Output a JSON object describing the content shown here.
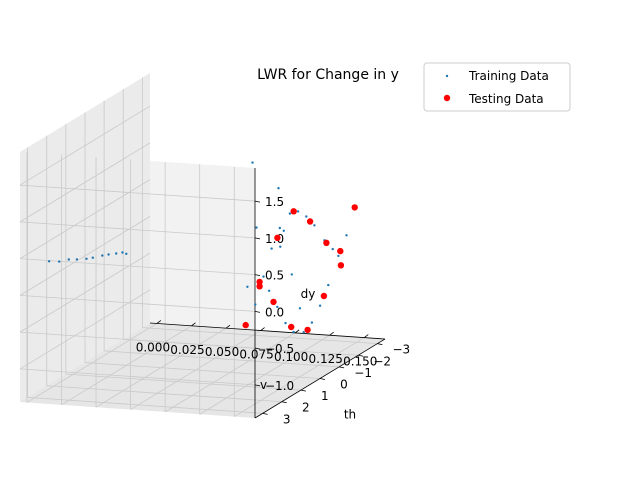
{
  "chart_data": {
    "type": "scatter",
    "projection": "3d",
    "title": "LWR for Change in y",
    "xlabel": "v",
    "ylabel": "th",
    "zlabel": "dy",
    "xlim": [
      -0.005,
      0.165
    ],
    "ylim": [
      -3.4,
      3.4
    ],
    "zlim": [
      -1.45,
      1.95
    ],
    "xticks": [
      "0.000",
      "0.025",
      "0.050",
      "0.075",
      "0.100",
      "0.125",
      "0.150"
    ],
    "yticks": [
      "−3",
      "−2",
      "−1",
      "0",
      "1",
      "2",
      "3"
    ],
    "zticks": [
      "−1.0",
      "−0.5",
      "0.0",
      "0.5",
      "1.0",
      "1.5"
    ],
    "grid": true,
    "legend": "top-right",
    "series": [
      {
        "name": "Training Data",
        "color": "#1f77b4",
        "marker": "small-dot",
        "points": [
          {
            "x": 0.0,
            "y": -1.8,
            "z": -0.25
          },
          {
            "x": 0.0,
            "y": -1.6,
            "z": -0.2
          },
          {
            "x": 0.001,
            "y": -1.2,
            "z": -0.15
          },
          {
            "x": 0.001,
            "y": -0.8,
            "z": -0.1
          },
          {
            "x": 0.002,
            "y": -0.4,
            "z": -0.05
          },
          {
            "x": 0.002,
            "y": 0.1,
            "z": 0.0
          },
          {
            "x": 0.003,
            "y": 0.5,
            "z": 0.05
          },
          {
            "x": 0.003,
            "y": 1.0,
            "z": 0.12
          },
          {
            "x": 0.004,
            "y": 1.5,
            "z": 0.2
          },
          {
            "x": 0.004,
            "y": 2.0,
            "z": 0.25
          },
          {
            "x": 0.005,
            "y": 2.6,
            "z": 0.35
          },
          {
            "x": 0.14,
            "y": -2.9,
            "z": -0.4
          },
          {
            "x": 0.141,
            "y": -2.4,
            "z": -0.1
          },
          {
            "x": 0.142,
            "y": -1.9,
            "z": 0.1
          },
          {
            "x": 0.143,
            "y": -1.3,
            "z": 0.4
          },
          {
            "x": 0.144,
            "y": -0.8,
            "z": 0.6
          },
          {
            "x": 0.145,
            "y": -0.3,
            "z": 0.75
          },
          {
            "x": 0.146,
            "y": 0.2,
            "z": 0.8
          },
          {
            "x": 0.147,
            "y": 0.8,
            "z": 0.7
          },
          {
            "x": 0.148,
            "y": 1.3,
            "z": 0.5
          },
          {
            "x": 0.149,
            "y": 1.8,
            "z": 0.2
          },
          {
            "x": 0.15,
            "y": 2.3,
            "z": -0.1
          },
          {
            "x": 0.15,
            "y": 2.8,
            "z": -0.3
          },
          {
            "x": 0.15,
            "y": -2.9,
            "z": 0.4
          },
          {
            "x": 0.151,
            "y": -2.4,
            "z": 0.1
          },
          {
            "x": 0.152,
            "y": -1.9,
            "z": -0.1
          },
          {
            "x": 0.153,
            "y": -1.3,
            "z": -0.4
          },
          {
            "x": 0.154,
            "y": -0.8,
            "z": -0.6
          },
          {
            "x": 0.155,
            "y": -0.3,
            "z": -0.75
          },
          {
            "x": 0.156,
            "y": 0.2,
            "z": -0.8
          },
          {
            "x": 0.157,
            "y": 0.8,
            "z": -0.7
          },
          {
            "x": 0.158,
            "y": 1.3,
            "z": -0.5
          },
          {
            "x": 0.159,
            "y": 1.8,
            "z": -0.2
          },
          {
            "x": 0.16,
            "y": 2.3,
            "z": 0.1
          },
          {
            "x": 0.16,
            "y": 2.8,
            "z": 0.3
          },
          {
            "x": 0.13,
            "y": 1.0,
            "z": 1.6
          },
          {
            "x": 0.135,
            "y": 0.0,
            "z": 1.1
          },
          {
            "x": 0.12,
            "y": -2.2,
            "z": -0.9
          },
          {
            "x": 0.125,
            "y": -1.0,
            "z": 0.35
          },
          {
            "x": 0.155,
            "y": 2.6,
            "z": 1.0
          },
          {
            "x": 0.11,
            "y": -2.5,
            "z": -0.5
          },
          {
            "x": 0.118,
            "y": 0.4,
            "z": -0.2
          },
          {
            "x": 0.128,
            "y": -0.6,
            "z": 0.2
          }
        ]
      },
      {
        "name": "Testing Data",
        "color": "#ff0000",
        "marker": "dot",
        "points": [
          {
            "x": 0.14,
            "y": -2.9,
            "z": -0.4
          },
          {
            "x": 0.142,
            "y": -2.0,
            "z": 0.05
          },
          {
            "x": 0.144,
            "y": -1.0,
            "z": 0.5
          },
          {
            "x": 0.146,
            "y": 0.0,
            "z": 0.8
          },
          {
            "x": 0.148,
            "y": 1.0,
            "z": 0.6
          },
          {
            "x": 0.149,
            "y": 2.0,
            "z": 0.1
          },
          {
            "x": 0.15,
            "y": 2.8,
            "z": -0.3
          },
          {
            "x": 0.15,
            "y": -2.9,
            "z": 0.4
          },
          {
            "x": 0.152,
            "y": -2.0,
            "z": -0.05
          },
          {
            "x": 0.154,
            "y": -1.0,
            "z": -0.5
          },
          {
            "x": 0.156,
            "y": 0.0,
            "z": -0.8
          },
          {
            "x": 0.158,
            "y": 1.0,
            "z": -0.6
          },
          {
            "x": 0.159,
            "y": 2.0,
            "z": -0.1
          },
          {
            "x": 0.16,
            "y": 2.8,
            "z": 0.3
          }
        ]
      }
    ]
  }
}
